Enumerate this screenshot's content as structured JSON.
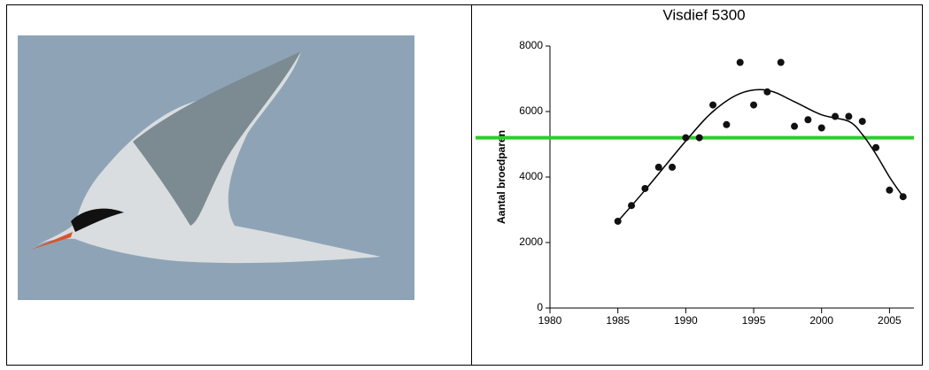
{
  "chart_data": {
    "type": "scatter",
    "title": "Visdief 5300",
    "y_label": "Aantal broedparen",
    "x": [
      1985,
      1986,
      1987,
      1988,
      1989,
      1990,
      1991,
      1992,
      1993,
      1994,
      1995,
      1996,
      1997,
      1998,
      1999,
      2000,
      2001,
      2002,
      2003,
      2004,
      2005,
      2006
    ],
    "values": [
      2650,
      3130,
      3650,
      4300,
      4300,
      5200,
      5200,
      6200,
      5600,
      7500,
      6200,
      6600,
      7500,
      5550,
      5750,
      5500,
      5850,
      5850,
      5700,
      4900,
      3600,
      3400
    ],
    "color": "#111111",
    "trend": {
      "x": [
        1985,
        1987,
        1990,
        1992,
        1994,
        1996,
        1998,
        2000,
        2002,
        2003,
        2004,
        2005,
        2006
      ],
      "values": [
        2650,
        3600,
        5100,
        6000,
        6550,
        6650,
        6300,
        5900,
        5700,
        5300,
        4700,
        4000,
        3400
      ],
      "color": "#000000"
    },
    "reference_line": {
      "value": 5200,
      "color": "#2ecc2e"
    },
    "xlim": [
      1980,
      2006.8
    ],
    "ylim": [
      0,
      8000
    ],
    "xticks": [
      1980,
      1985,
      1990,
      1995,
      2000,
      2005
    ],
    "yticks": [
      0,
      2000,
      4000,
      6000,
      8000
    ]
  }
}
